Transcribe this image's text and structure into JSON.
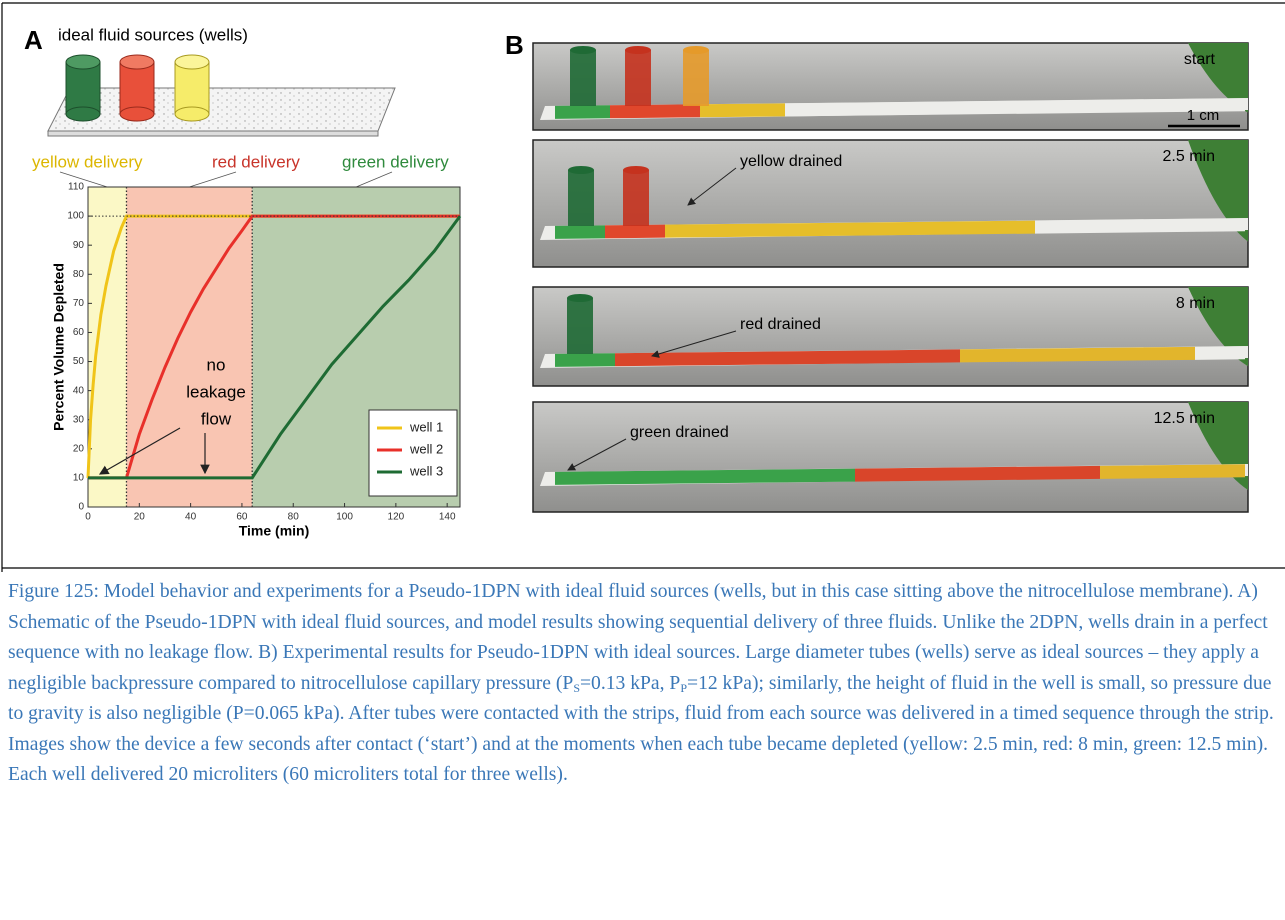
{
  "figure": {
    "panel_a": {
      "label": "A",
      "schematic_title": "ideal fluid sources (wells)",
      "chart": {
        "type": "line",
        "y_label": "Percent Volume Depleted",
        "x_label": "Time (min)",
        "xlim": [
          0,
          145
        ],
        "xticks": [
          0,
          20,
          40,
          60,
          80,
          100,
          120,
          140
        ],
        "ylim": [
          0,
          110
        ],
        "yticks": [
          0,
          10,
          20,
          30,
          40,
          50,
          60,
          70,
          80,
          90,
          100,
          110
        ],
        "phases": [
          {
            "name": "yellow delivery",
            "start": 0,
            "end": 15,
            "color": "#fbf8c6"
          },
          {
            "name": "red delivery",
            "start": 15,
            "end": 64,
            "color": "#f9c5b2"
          },
          {
            "name": "green delivery",
            "start": 64,
            "end": 145,
            "color": "#b8cdae"
          }
        ],
        "annotation": [
          "no",
          "leakage",
          "flow"
        ],
        "legend": "lower right",
        "series": [
          {
            "name": "well 1",
            "color": "#f0c419",
            "x": [
              0,
              1,
              2,
              3,
              5,
              7,
              10,
              13,
              15,
              145
            ],
            "values": [
              10,
              30,
              42,
              52,
              66,
              76,
              88,
              96,
              100,
              100
            ]
          },
          {
            "name": "well 2",
            "color": "#e8302a",
            "x": [
              0,
              15,
              20,
              25,
              30,
              35,
              40,
              45,
              50,
              55,
              60,
              64,
              145
            ],
            "values": [
              10,
              10,
              25,
              37,
              48,
              58,
              67,
              75,
              82,
              89,
              95,
              100,
              100
            ]
          },
          {
            "name": "well 3",
            "color": "#1e6b33",
            "x": [
              0,
              64,
              75,
              85,
              95,
              105,
              115,
              125,
              135,
              145
            ],
            "values": [
              10,
              10,
              25,
              37,
              49,
              59,
              69,
              78,
              88,
              100
            ]
          }
        ]
      }
    },
    "panel_b": {
      "label": "B",
      "frames": [
        {
          "time": "start",
          "scale_bar": "1 cm"
        },
        {
          "time": "2.5 min",
          "note": "yellow drained"
        },
        {
          "time": "8 min",
          "note": "red drained"
        },
        {
          "time": "12.5 min",
          "note": "green drained"
        }
      ]
    }
  },
  "caption": [
    "Figure 125: Model behavior and experiments for a Pseudo-1DPN with ideal fluid sources (wells, but in this case sitting above the nitrocellulose membrane). A) Schematic of the Pseudo-1DPN with ideal fluid sources, and model results showing sequential delivery of three fluids. Unlike the 2DPN, wells drain in a perfect sequence with no leakage flow. B) Experimental results for Pseudo-1DPN with ideal sources. Large diameter tubes (wells) serve as ideal sources – they apply a negligible backpressure compared to nitrocellulose capillary pressure (P",
    "S",
    "=0.13 kPa, P",
    "P",
    "=12 kPa); similarly, the height of fluid in the well is small, so pressure due to gravity is also negligible (P=0.065 kPa). After tubes were contacted with the strips, fluid from each source was delivered in a timed sequence through the strip. Images show the device a few seconds after contact (‘start’) and at the moments when each tube became depleted (yellow: 2.5 min, red: 8 min, green: 12.5 min). Each well delivered 20 microliters (60 microliters total for three wells)."
  ]
}
